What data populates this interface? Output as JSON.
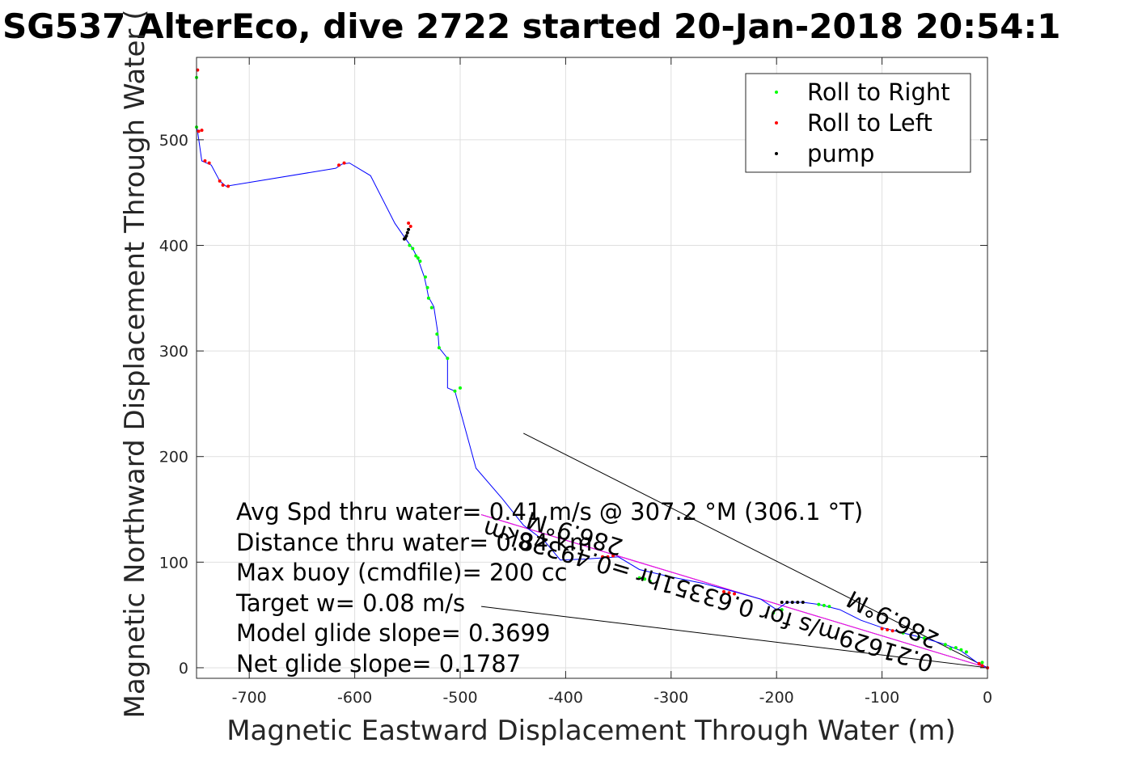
{
  "chart_data": {
    "type": "scatter",
    "title": "SG537 AlterEco, dive 2722 started 20-Jan-2018 20:54:1",
    "xlabel": "Magnetic Eastward Displacement Through Water (m)",
    "ylabel": "Magnetic Northward Displacement Through Water (",
    "xlim": [
      -750,
      0
    ],
    "ylim": [
      -10,
      578
    ],
    "xticks": [
      -700,
      -600,
      -500,
      -400,
      -300,
      -200,
      -100,
      0
    ],
    "yticks": [
      0,
      100,
      200,
      300,
      400,
      500
    ],
    "xtick_labels": [
      "-700",
      "-600",
      "-500",
      "-400",
      "-300",
      "-200",
      "-100",
      "0"
    ],
    "ytick_labels": [
      "0",
      "100",
      "200",
      "300",
      "400",
      "500"
    ],
    "grid": true,
    "legend_position": "top-right",
    "legend": [
      {
        "name": "Roll to Right",
        "color": "#00ff00"
      },
      {
        "name": "Roll to Left",
        "color": "#ff0000"
      },
      {
        "name": "pump",
        "color": "#000000"
      }
    ],
    "track": {
      "color": "#0000ff",
      "x": [
        0,
        -10,
        -25,
        -40,
        -60,
        -80,
        -100,
        -120,
        -140,
        -160,
        -175,
        -190,
        -200,
        -215,
        -240,
        -270,
        -300,
        -330,
        -350,
        -380,
        -405,
        -420,
        -440,
        -460,
        -485,
        -505,
        -512,
        -512,
        -520,
        -521,
        -525,
        -530,
        -532,
        -534,
        -540,
        -545,
        -553,
        -562,
        -585,
        -605,
        -612,
        -618,
        -722,
        -728,
        -736,
        -745,
        -749,
        -750,
        -750,
        -750
      ],
      "y": [
        0,
        5,
        16,
        22,
        28,
        33,
        38,
        45,
        55,
        60,
        62,
        62,
        55,
        65,
        72,
        80,
        86,
        93,
        105,
        103,
        102,
        120,
        135,
        160,
        189,
        262,
        265,
        293,
        303,
        316,
        342,
        351,
        361,
        370,
        387,
        397,
        408,
        421,
        466,
        478,
        477,
        473,
        456,
        461,
        476,
        480,
        508,
        513,
        559,
        566
      ]
    },
    "roll_right": {
      "color": "#00ff00",
      "x": [
        -5,
        -20,
        -25,
        -30,
        -35,
        -40,
        -60,
        -65,
        -80,
        -150,
        -155,
        -160,
        -195,
        -203,
        -320,
        -325,
        -330,
        -500,
        -505,
        -512,
        -520,
        -522,
        -527,
        -530,
        -531,
        -533,
        -538,
        -540,
        -542,
        -545,
        -548,
        -750,
        -750
      ],
      "y": [
        5,
        15,
        17,
        19,
        18,
        22,
        28,
        29,
        33,
        58,
        59,
        60,
        55,
        52,
        82,
        84,
        85,
        265,
        262,
        293,
        303,
        316,
        341,
        350,
        360,
        370,
        385,
        388,
        390,
        397,
        400,
        512,
        559
      ]
    },
    "roll_left": {
      "color": "#ff0000",
      "x": [
        0,
        -5,
        -8,
        -90,
        -95,
        -100,
        -240,
        -245,
        -250,
        -355,
        -360,
        -365,
        -547,
        -549,
        -610,
        -615,
        -720,
        -725,
        -728,
        -738,
        -742,
        -745,
        -748,
        -749
      ],
      "y": [
        0,
        2,
        4,
        35,
        36,
        37,
        70,
        71,
        72,
        106,
        105,
        105,
        418,
        421,
        478,
        476,
        456,
        457,
        461,
        478,
        480,
        509,
        508,
        566
      ]
    },
    "pump": {
      "color": "#000000",
      "x": [
        -175,
        -180,
        -185,
        -190,
        -195,
        -549,
        -550,
        -551,
        -552,
        -553
      ],
      "y": [
        62,
        62,
        62,
        62,
        62,
        415,
        412,
        409,
        407,
        406
      ]
    },
    "reference_lines": [
      {
        "color": "#000000",
        "x": [
          0,
          -440
        ],
        "y": [
          0,
          222
        ]
      },
      {
        "color": "#000000",
        "x": [
          0,
          -480
        ],
        "y": [
          0,
          145
        ]
      },
      {
        "color": "#000000",
        "x": [
          0,
          -480
        ],
        "y": [
          0,
          58
        ]
      },
      {
        "color": "#ff00ff",
        "x": [
          0,
          -480
        ],
        "y": [
          0,
          145
        ]
      }
    ],
    "annotations": {
      "stats": [
        "Avg Spd thru water= 0.41 m/s @ 307.2 °M (306.1 °T)",
        "Distance thru water= 0.84 km",
        "Max buoy (cmdfile)= 200 cc",
        "Target w= 0.08 m/s",
        "Model glide slope= 0.3699",
        "Net glide slope= 0.1787"
      ],
      "current_speed": "0.21629m/s for 0.63351hr =0.49328km",
      "heading_label_1": "286.9°M",
      "heading_label_2": "286.9°M"
    }
  }
}
